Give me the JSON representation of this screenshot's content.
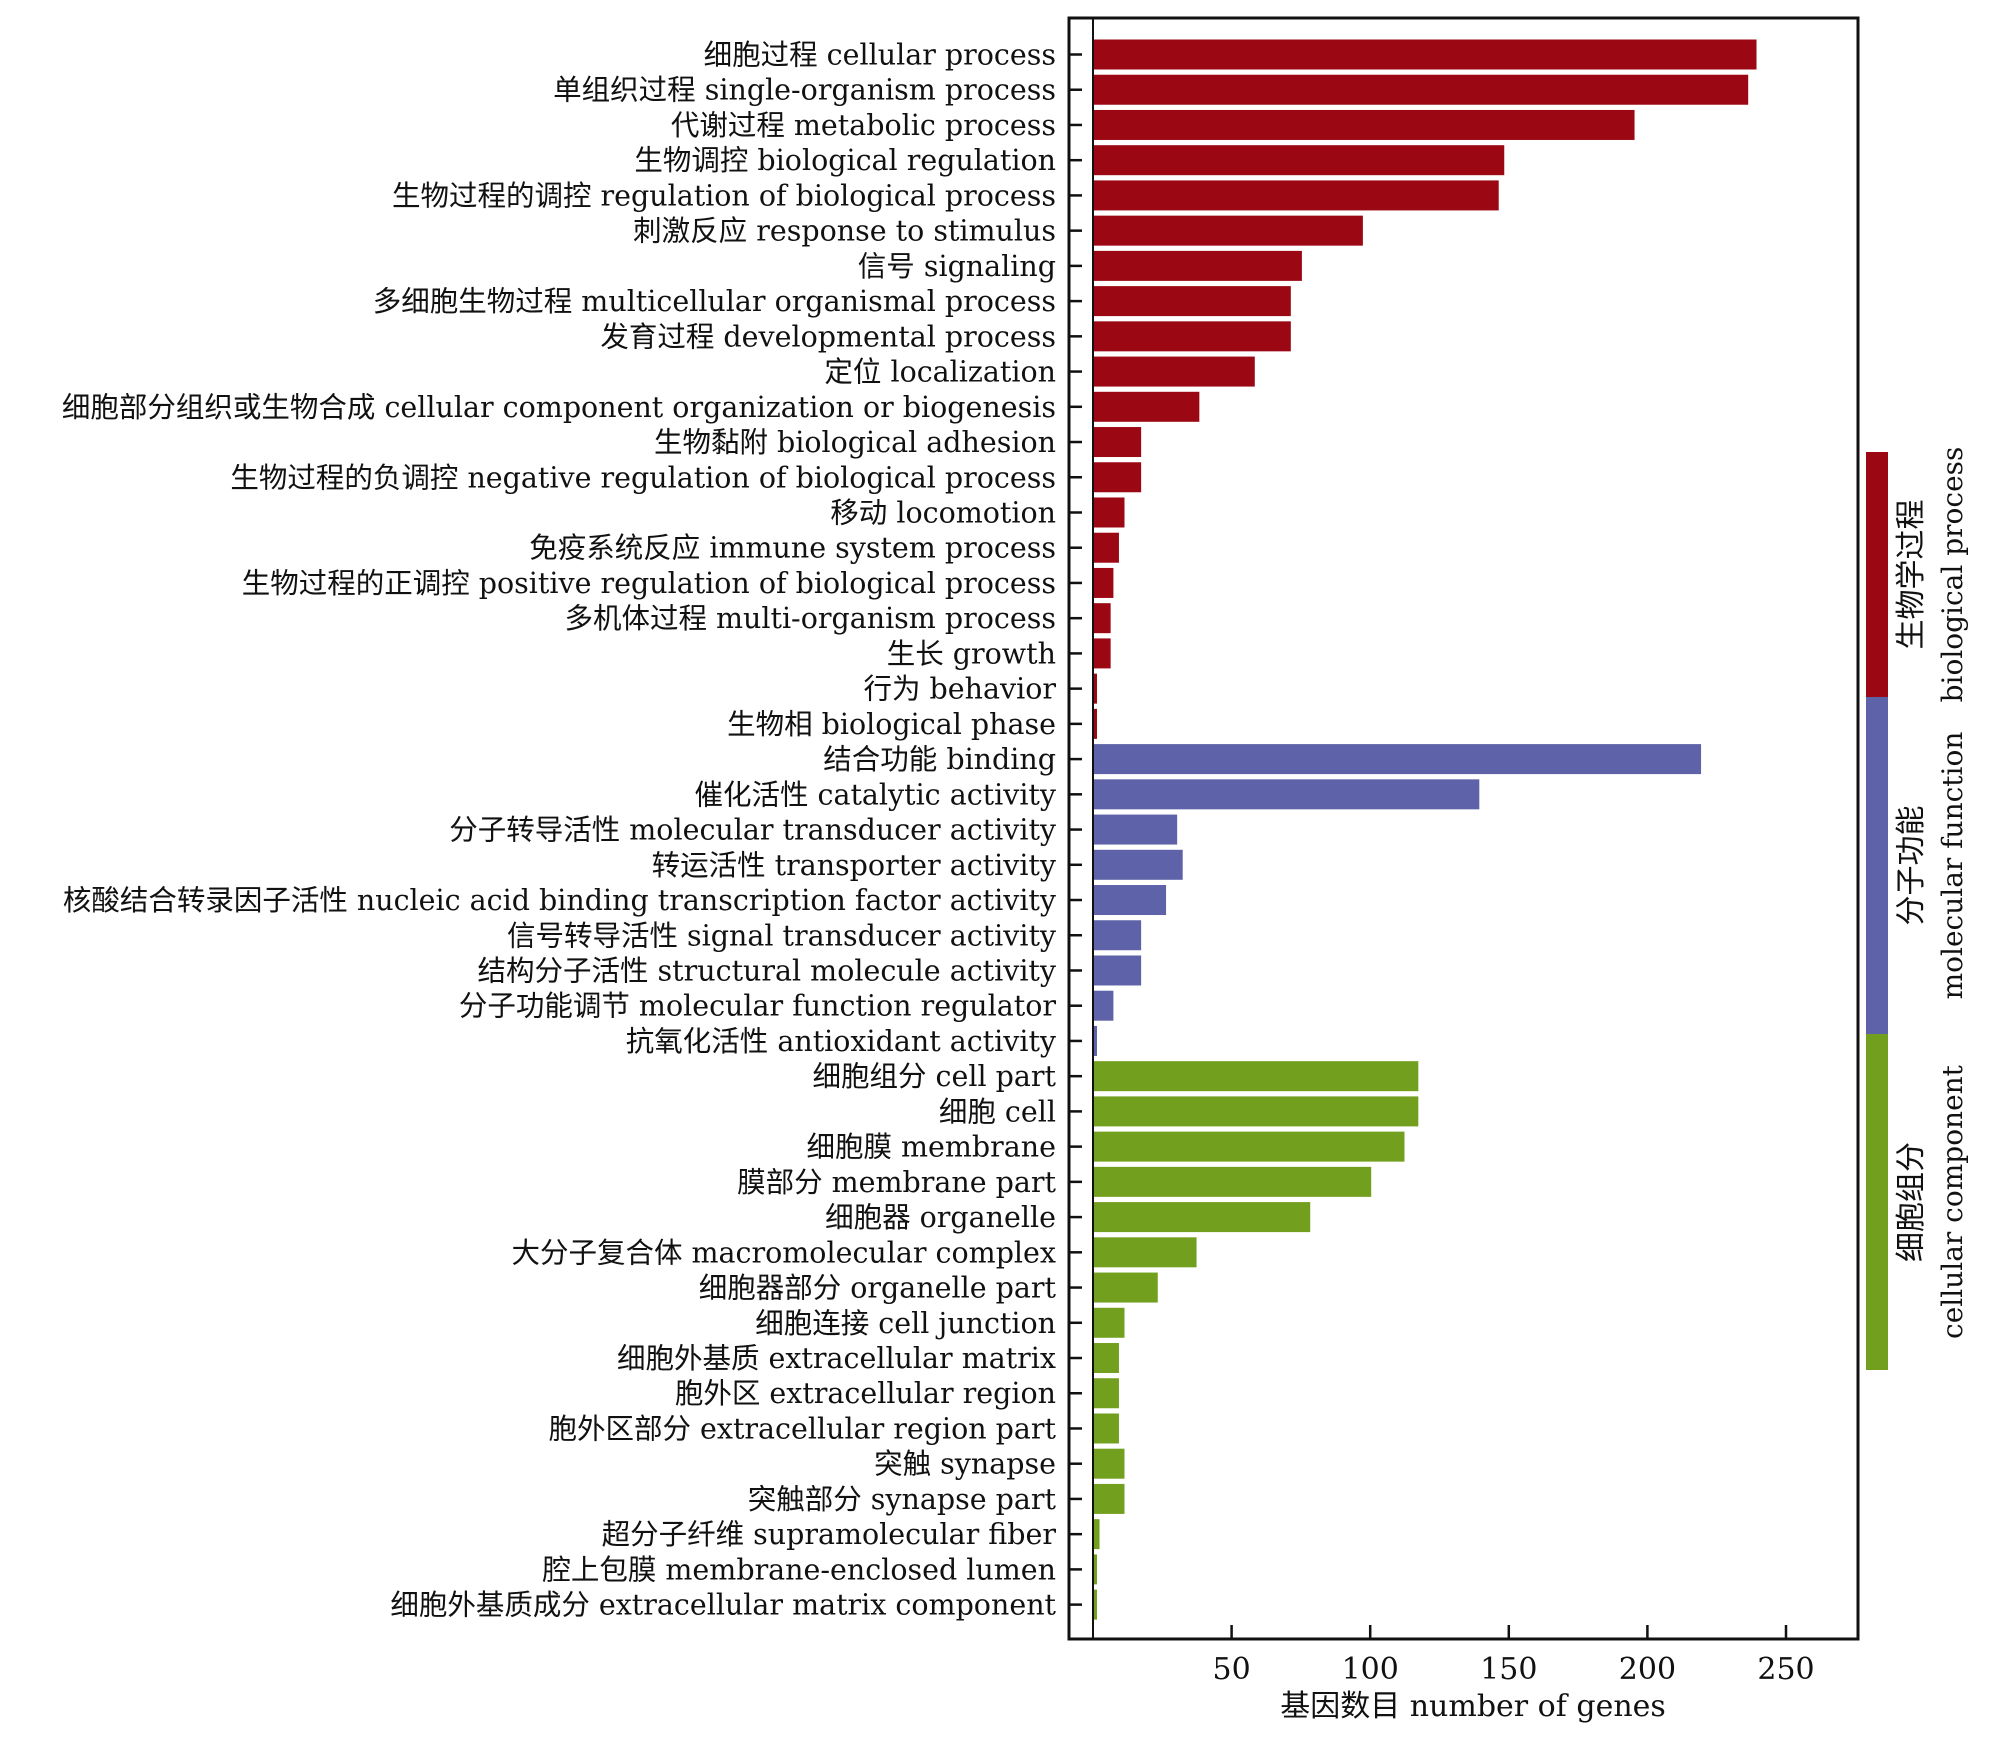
{
  "chart_data": {
    "type": "bar",
    "orientation": "horizontal",
    "title": "",
    "xlabel": "基因数目 number of genes",
    "ylabel": "",
    "xlim": [
      -10,
      275
    ],
    "xticks": [
      50,
      100,
      150,
      200,
      250
    ],
    "grid": false,
    "colors": {
      "biological_process": "#9b0712",
      "molecular_function": "#5e62a8",
      "cellular_component": "#72a01e"
    },
    "groups": [
      {
        "key": "biological_process",
        "label_cn": "生物学过程",
        "label_en": "biological process"
      },
      {
        "key": "molecular_function",
        "label_cn": "分子功能",
        "label_en": "molecular function"
      },
      {
        "key": "cellular_component",
        "label_cn": "细胞组分",
        "label_en": "cellular component"
      }
    ],
    "categories": [
      {
        "label": "细胞过程 cellular process",
        "value": 239,
        "group": "biological_process"
      },
      {
        "label": "单组织过程 single-organism process",
        "value": 236,
        "group": "biological_process"
      },
      {
        "label": "代谢过程 metabolic process",
        "value": 195,
        "group": "biological_process"
      },
      {
        "label": "生物调控 biological regulation",
        "value": 148,
        "group": "biological_process"
      },
      {
        "label": "生物过程的调控 regulation of biological process",
        "value": 146,
        "group": "biological_process"
      },
      {
        "label": "刺激反应 response to stimulus",
        "value": 97,
        "group": "biological_process"
      },
      {
        "label": "信号 signaling",
        "value": 75,
        "group": "biological_process"
      },
      {
        "label": "多细胞生物过程 multicellular organismal process",
        "value": 71,
        "group": "biological_process"
      },
      {
        "label": "发育过程 developmental process",
        "value": 71,
        "group": "biological_process"
      },
      {
        "label": "定位 localization",
        "value": 58,
        "group": "biological_process"
      },
      {
        "label": "细胞部分组织或生物合成 cellular component organization or biogenesis",
        "value": 38,
        "group": "biological_process"
      },
      {
        "label": "生物黏附 biological adhesion",
        "value": 17,
        "group": "biological_process"
      },
      {
        "label": "生物过程的负调控 negative regulation of biological process",
        "value": 17,
        "group": "biological_process"
      },
      {
        "label": "移动 locomotion",
        "value": 11,
        "group": "biological_process"
      },
      {
        "label": "免疫系统反应 immune system process",
        "value": 9,
        "group": "biological_process"
      },
      {
        "label": "生物过程的正调控 positive regulation of biological process",
        "value": 7,
        "group": "biological_process"
      },
      {
        "label": "多机体过程 multi-organism process",
        "value": 6,
        "group": "biological_process"
      },
      {
        "label": "生长 growth",
        "value": 6,
        "group": "biological_process"
      },
      {
        "label": "行为 behavior",
        "value": 1,
        "group": "biological_process"
      },
      {
        "label": "生物相 biological phase",
        "value": 1,
        "group": "biological_process"
      },
      {
        "label": "结合功能 binding",
        "value": 219,
        "group": "molecular_function"
      },
      {
        "label": "催化活性 catalytic activity",
        "value": 139,
        "group": "molecular_function"
      },
      {
        "label": "分子转导活性 molecular transducer activity",
        "value": 30,
        "group": "molecular_function"
      },
      {
        "label": "转运活性 transporter activity",
        "value": 32,
        "group": "molecular_function"
      },
      {
        "label": "核酸结合转录因子活性 nucleic acid binding transcription factor activity",
        "value": 26,
        "group": "molecular_function"
      },
      {
        "label": "信号转导活性 signal transducer activity",
        "value": 17,
        "group": "molecular_function"
      },
      {
        "label": "结构分子活性 structural molecule activity",
        "value": 17,
        "group": "molecular_function"
      },
      {
        "label": "分子功能调节 molecular function regulator",
        "value": 7,
        "group": "molecular_function"
      },
      {
        "label": "抗氧化活性 antioxidant activity",
        "value": 1,
        "group": "molecular_function"
      },
      {
        "label": "细胞组分 cell part",
        "value": 117,
        "group": "cellular_component"
      },
      {
        "label": "细胞 cell",
        "value": 117,
        "group": "cellular_component"
      },
      {
        "label": "细胞膜 membrane",
        "value": 112,
        "group": "cellular_component"
      },
      {
        "label": "膜部分 membrane part",
        "value": 100,
        "group": "cellular_component"
      },
      {
        "label": "细胞器 organelle",
        "value": 78,
        "group": "cellular_component"
      },
      {
        "label": "大分子复合体 macromolecular complex",
        "value": 37,
        "group": "cellular_component"
      },
      {
        "label": "细胞器部分 organelle part",
        "value": 23,
        "group": "cellular_component"
      },
      {
        "label": "细胞连接 cell junction",
        "value": 11,
        "group": "cellular_component"
      },
      {
        "label": "细胞外基质 extracellular matrix",
        "value": 9,
        "group": "cellular_component"
      },
      {
        "label": "胞外区 extracellular region",
        "value": 9,
        "group": "cellular_component"
      },
      {
        "label": "胞外区部分 extracellular region part",
        "value": 9,
        "group": "cellular_component"
      },
      {
        "label": "突触 synapse",
        "value": 11,
        "group": "cellular_component"
      },
      {
        "label": "突触部分 synapse part",
        "value": 11,
        "group": "cellular_component"
      },
      {
        "label": "超分子纤维  supramolecular fiber",
        "value": 2,
        "group": "cellular_component"
      },
      {
        "label": "腔上包膜 membrane-enclosed lumen",
        "value": 1,
        "group": "cellular_component"
      },
      {
        "label": "细胞外基质成分 extracellular matrix component",
        "value": 1,
        "group": "cellular_component"
      }
    ]
  }
}
